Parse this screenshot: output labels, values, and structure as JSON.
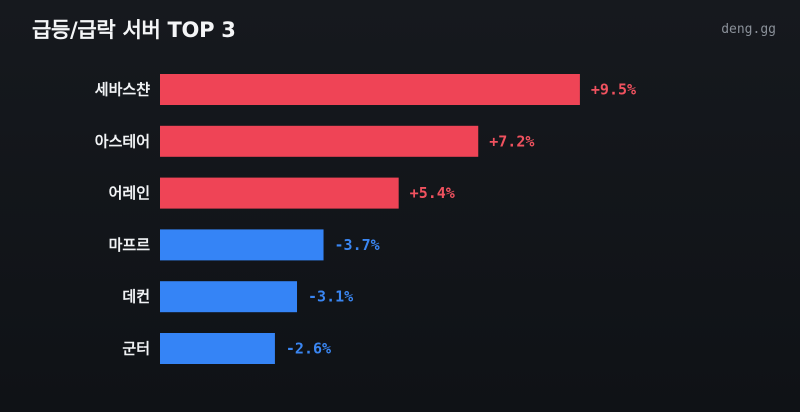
{
  "header": {
    "title": "급등/급락 서버 TOP 3",
    "brand": "deng.gg"
  },
  "colors": {
    "positive": "#ef4456",
    "negative": "#3584f6",
    "positive_text": "#f0525f",
    "negative_text": "#3a86f2"
  },
  "chart_data": {
    "type": "bar",
    "orientation": "horizontal",
    "title": "급등/급락 서버 TOP 3",
    "categories": [
      "세바스챤",
      "아스테어",
      "어레인",
      "마프르",
      "데컨",
      "군터"
    ],
    "values": [
      9.5,
      7.2,
      5.4,
      -3.7,
      -3.1,
      -2.6
    ],
    "value_labels": [
      "+9.5%",
      "+7.2%",
      "+5.4%",
      "-3.7%",
      "-3.1%",
      "-2.6%"
    ],
    "bar_length": "absolute value",
    "grid": false,
    "legend": "none"
  }
}
